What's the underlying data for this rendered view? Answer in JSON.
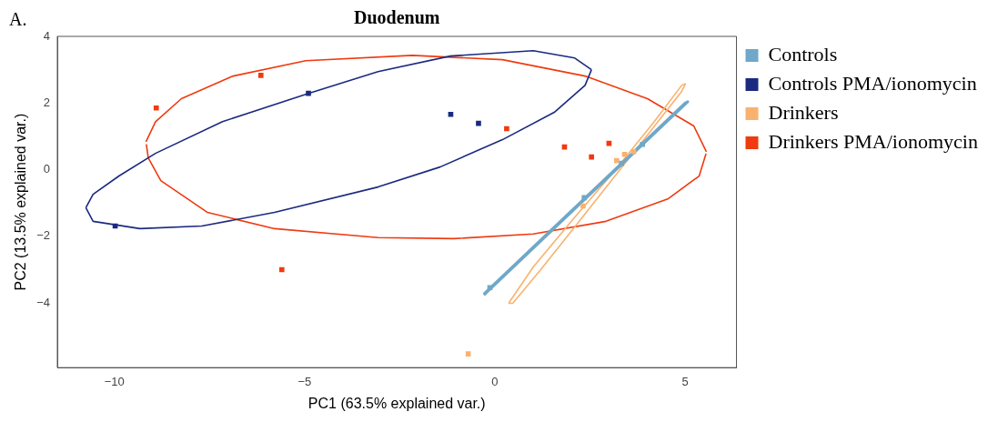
{
  "chart_data": {
    "type": "scatter",
    "title": "Duodenum",
    "xlabel": "PC1 (63.5% explained var.)",
    "ylabel": "PC2 (13.5% explained var.)",
    "annotations": [
      "A."
    ],
    "xlim": [
      -11.5,
      6.35
    ],
    "xticks": [
      -10,
      -5,
      0,
      5
    ],
    "ylim": [
      -5.94,
      4
    ],
    "yticks": [
      -4,
      -2,
      0,
      2,
      4
    ],
    "grid": false,
    "legend": "right",
    "marker": "square",
    "series": [
      {
        "name": "Controls",
        "color": "#6fa8c8",
        "x": [
          -0.13,
          2.35,
          3.33,
          3.88
        ],
        "values": [
          -3.54,
          -0.84,
          0.19,
          0.76
        ]
      },
      {
        "name": "Controls PMA/ionomycin",
        "color": "#1a2a80",
        "x": [
          -9.98,
          -4.9,
          -1.16,
          -0.43
        ],
        "values": [
          -1.69,
          2.29,
          1.66,
          1.39
        ]
      },
      {
        "name": "Drinkers",
        "color": "#f9b26e",
        "x": [
          -0.7,
          2.32,
          3.2,
          3.41,
          3.65
        ],
        "values": [
          -5.53,
          -1.09,
          0.27,
          0.46,
          0.54
        ]
      },
      {
        "name": "Drinkers PMA/ionomycin",
        "color": "#f03a0f",
        "x": [
          -8.9,
          -6.15,
          -5.6,
          0.31,
          1.83,
          2.54,
          3.0
        ],
        "values": [
          1.85,
          2.83,
          -3.0,
          1.23,
          0.68,
          0.38,
          0.79
        ]
      },
      {
        "type": "line",
        "marker": "none",
        "color": "#6fa8c8",
        "x": [
          -0.29,
          5.07,
          5.0,
          -0.29
        ],
        "values": [
          -3.76,
          2.04,
          2.0,
          -3.73
        ]
      },
      {
        "type": "line",
        "marker": "none",
        "color": "#1a2a80",
        "x": [
          -10.75,
          -10.56,
          -9.88,
          -8.92,
          -7.16,
          -4.9,
          -3.07,
          -1.17,
          1.01,
          2.1,
          2.54
        ],
        "values": [
          -1.14,
          -0.74,
          -0.19,
          0.49,
          1.44,
          2.29,
          2.94,
          3.41,
          3.57,
          3.35,
          3.0
        ]
      },
      {
        "type": "line",
        "marker": "none",
        "color": "#1a2a80",
        "x": [
          -10.75,
          -10.56,
          -9.33,
          -7.7,
          -5.79,
          -3.07,
          -1.44,
          0.2,
          1.56,
          2.37,
          2.54
        ],
        "values": [
          -1.14,
          -1.55,
          -1.77,
          -1.69,
          -1.28,
          -0.52,
          0.08,
          0.9,
          1.72,
          2.53,
          3.0
        ]
      },
      {
        "type": "line",
        "marker": "none",
        "color": "#f9b26e",
        "x": [
          0.36,
          1.01,
          2.01,
          3.1,
          4.19,
          4.91,
          5.01
        ],
        "values": [
          -4.01,
          -2.92,
          -1.55,
          -0.1,
          1.44,
          2.53,
          2.58
        ]
      },
      {
        "type": "line",
        "marker": "none",
        "color": "#f9b26e",
        "x": [
          0.36,
          0.47,
          1.2,
          2.28,
          3.28,
          4.1,
          4.91,
          5.01
        ],
        "values": [
          -4.01,
          -4.01,
          -3.01,
          -1.46,
          -0.01,
          1.17,
          2.35,
          2.58
        ]
      },
      {
        "type": "line",
        "marker": "none",
        "color": "#f03a0f",
        "x": [
          -9.17,
          -8.92,
          -8.24,
          -6.88,
          -4.97,
          -2.17,
          0.2,
          2.37,
          4.01,
          5.23,
          5.56
        ],
        "values": [
          0.84,
          1.44,
          2.13,
          2.81,
          3.27,
          3.43,
          3.3,
          2.81,
          2.13,
          1.31,
          0.54
        ]
      },
      {
        "type": "line",
        "marker": "none",
        "color": "#f03a0f",
        "x": [
          -9.16,
          -9.11,
          -8.78,
          -7.56,
          -5.79,
          -3.07,
          -1.08,
          1.01,
          2.92,
          4.56,
          5.37,
          5.55
        ],
        "values": [
          0.76,
          0.35,
          -0.33,
          -1.28,
          -1.77,
          -2.04,
          -2.07,
          -1.93,
          -1.55,
          -0.87,
          -0.19,
          0.48
        ]
      }
    ]
  }
}
